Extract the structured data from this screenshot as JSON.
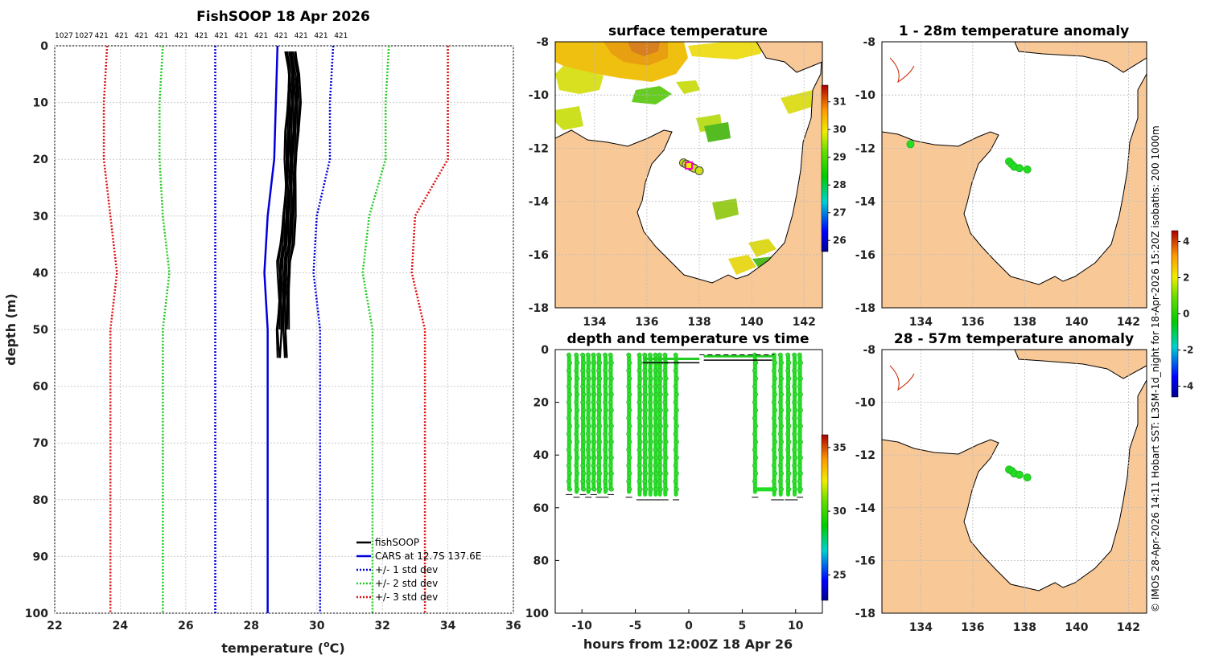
{
  "colors": {
    "land": "#f9c897",
    "fishsoop": "#000000",
    "cars": "#0000dd",
    "std1": "#0000dd",
    "std2": "#22cc22",
    "std3": "#dd1111",
    "track": "#22dd22",
    "shelf": "#cc2200"
  },
  "profile": {
    "title": "FishSOOP 18 Apr 2026",
    "xlabel": "temperature (",
    "xlabel_sup": "o",
    "xlabel_end": "C)",
    "ylabel": "depth (m)",
    "top_labels": [
      "1027",
      "1027",
      "421",
      "421",
      "421",
      "421",
      "421",
      "421",
      "421",
      "421",
      "421",
      "421",
      "421",
      "421",
      "421"
    ],
    "legend": [
      "fishSOOP",
      "CARS at 12.7S 137.6E",
      "+/- 1 std dev",
      "+/- 2 std dev",
      "+/- 3 std dev"
    ]
  },
  "sst_map": {
    "title": "surface temperature"
  },
  "anom1_map": {
    "title": "1 - 28m temperature anomaly"
  },
  "anom2_map": {
    "title": "28 - 57m temperature anomaly"
  },
  "dt_plot": {
    "title": "depth and temperature vs time",
    "xlabel": "hours from 12:00Z 18 Apr 26"
  },
  "side_text": "© IMOS 28-Apr-2026 14:11 Hobart SST: L3SM-1d_night for 18-Apr-2026 15:20Z isobaths: 200  1000m",
  "chart_data": [
    {
      "type": "line",
      "name": "profile",
      "xlim": [
        22,
        36
      ],
      "ylim": [
        0,
        100
      ],
      "xticks": [
        22,
        24,
        26,
        28,
        30,
        32,
        34,
        36
      ],
      "yticks": [
        0,
        10,
        20,
        30,
        40,
        50,
        60,
        70,
        80,
        90,
        100
      ],
      "depth": [
        0,
        10,
        20,
        30,
        40,
        50,
        100
      ],
      "cars": [
        28.8,
        28.75,
        28.7,
        28.5,
        28.4,
        28.5,
        28.5
      ],
      "std1_lo": [
        26.9,
        26.9,
        26.9,
        26.9,
        26.9,
        26.9,
        26.9
      ],
      "std1_hi": [
        30.5,
        30.4,
        30.4,
        30.0,
        29.9,
        30.1,
        30.1
      ],
      "std2_lo": [
        25.3,
        25.2,
        25.2,
        25.3,
        25.5,
        25.3,
        25.3
      ],
      "std2_hi": [
        32.2,
        32.1,
        32.1,
        31.6,
        31.4,
        31.7,
        31.7
      ],
      "std3_lo": [
        23.6,
        23.5,
        23.5,
        23.7,
        23.9,
        23.7,
        23.7
      ],
      "std3_hi": [
        34.0,
        34.0,
        34.0,
        33.0,
        32.9,
        33.3,
        33.3
      ],
      "fishsoop_depth": [
        1,
        5,
        10,
        15,
        20,
        25,
        30,
        35,
        38,
        40,
        45,
        50,
        55
      ],
      "fishsoop_temp": [
        29.2,
        29.3,
        29.3,
        29.25,
        29.2,
        29.2,
        29.15,
        29.1,
        29.0,
        29.0,
        29.0,
        28.95,
        28.95
      ],
      "fishsoop_spread": 0.18
    },
    {
      "type": "scatter",
      "name": "depth_vs_time",
      "xlim": [
        -12.5,
        12.5
      ],
      "ylim": [
        0,
        100
      ],
      "xticks": [
        -10,
        -5,
        0,
        5,
        10
      ],
      "yticks": [
        0,
        20,
        40,
        60,
        80,
        100
      ],
      "cast_times": [
        -11.2,
        -10.5,
        -9.9,
        -9.4,
        -8.9,
        -8.4,
        -7.8,
        -7.3,
        -5.6,
        -4.6,
        -4.1,
        -3.6,
        -3.1,
        -2.7,
        -2.2,
        -1.2,
        6.2,
        8.0,
        8.6,
        9.3,
        9.9,
        10.4
      ],
      "cast_depths": [
        53,
        54,
        53,
        54,
        53,
        54,
        54,
        53,
        54,
        55,
        55,
        55,
        55,
        55,
        55,
        55,
        54,
        55,
        55,
        55,
        55,
        54
      ],
      "flat_segment": [
        [
          -4.3,
          5
        ],
        [
          1.0,
          5
        ],
        [
          1.4,
          4
        ],
        [
          7.8,
          4
        ]
      ],
      "colorbar": {
        "ticks": [
          25,
          30,
          35
        ],
        "range": [
          23,
          36
        ]
      }
    },
    {
      "type": "heatmap",
      "name": "surface_temperature",
      "xlim": [
        132.5,
        142.7
      ],
      "ylim": [
        -18,
        -8
      ],
      "xticks": [
        134,
        136,
        138,
        140,
        142
      ],
      "yticks": [
        -8,
        -10,
        -12,
        -14,
        -16,
        -18
      ],
      "colorbar": {
        "ticks": [
          26,
          27,
          28,
          29,
          30,
          31
        ],
        "range": [
          25.6,
          31.6
        ]
      },
      "track_lon": [
        137.4,
        137.5,
        137.6,
        137.7,
        137.8,
        138.0
      ],
      "track_lat": [
        -12.55,
        -12.6,
        -12.65,
        -12.7,
        -12.75,
        -12.85
      ]
    },
    {
      "type": "scatter",
      "name": "anomaly_1_28m",
      "xlim": [
        132.5,
        142.7
      ],
      "ylim": [
        -18,
        -8
      ],
      "xticks": [
        134,
        136,
        138,
        140,
        142
      ],
      "yticks": [
        -8,
        -10,
        -12,
        -14,
        -16,
        -18
      ],
      "colorbar": {
        "ticks": [
          4,
          2,
          0,
          -2,
          -4
        ],
        "range": [
          -4.6,
          4.6
        ]
      },
      "points_lon": [
        133.6,
        137.4,
        137.5,
        137.6,
        137.8,
        138.1
      ],
      "points_lat": [
        -11.85,
        -12.5,
        -12.6,
        -12.7,
        -12.75,
        -12.8
      ]
    },
    {
      "type": "scatter",
      "name": "anomaly_28_57m",
      "xlim": [
        132.5,
        142.7
      ],
      "ylim": [
        -18,
        -8
      ],
      "xticks": [
        134,
        136,
        138,
        140,
        142
      ],
      "yticks": [
        -8,
        -10,
        -12,
        -14,
        -16,
        -18
      ],
      "points_lon": [
        137.4,
        137.5,
        137.6,
        137.8,
        138.1
      ],
      "points_lat": [
        -12.55,
        -12.6,
        -12.7,
        -12.75,
        -12.85
      ]
    }
  ]
}
